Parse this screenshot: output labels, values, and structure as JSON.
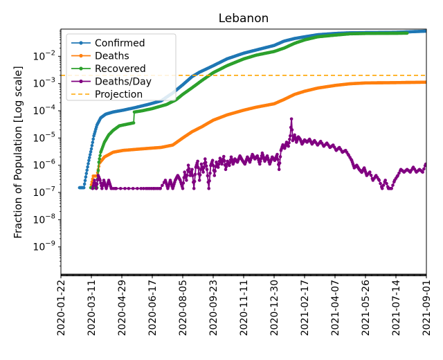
{
  "chart_data": {
    "type": "line",
    "title": "Lebanon",
    "ylabel": "Fraction of Population [Log scale]",
    "xlabel": "",
    "yscale": "log",
    "ylim": [
      1e-10,
      0.1
    ],
    "xlim": [
      "2020-01-22",
      "2021-09-01"
    ],
    "x_ticks": [
      "2020-01-22",
      "2020-03-11",
      "2020-04-29",
      "2020-06-17",
      "2020-08-05",
      "2020-09-23",
      "2020-11-11",
      "2020-12-30",
      "2021-02-17",
      "2021-04-07",
      "2021-05-26",
      "2021-07-14",
      "2021-09-01"
    ],
    "y_ticks": [
      {
        "value": 1e-09,
        "base": "10",
        "exp": "−9"
      },
      {
        "value": 1e-08,
        "base": "10",
        "exp": "−8"
      },
      {
        "value": 1e-07,
        "base": "10",
        "exp": "−7"
      },
      {
        "value": 1e-06,
        "base": "10",
        "exp": "−6"
      },
      {
        "value": 1e-05,
        "base": "10",
        "exp": "−5"
      },
      {
        "value": 0.0001,
        "base": "10",
        "exp": "−4"
      },
      {
        "value": 0.001,
        "base": "10",
        "exp": "−3"
      },
      {
        "value": 0.01,
        "base": "10",
        "exp": "−2"
      }
    ],
    "legend_position": "upper-left",
    "series": [
      {
        "name": "Confirmed",
        "color": "#1f77b4",
        "style": "line-marker",
        "points": [
          [
            "2020-02-21",
            1.5e-07
          ],
          [
            "2020-02-28",
            1.5e-07
          ],
          [
            "2020-03-03",
            5e-07
          ],
          [
            "2020-03-07",
            1.5e-06
          ],
          [
            "2020-03-11",
            4e-06
          ],
          [
            "2020-03-15",
            1.2e-05
          ],
          [
            "2020-03-20",
            3e-05
          ],
          [
            "2020-03-26",
            5.5e-05
          ],
          [
            "2020-04-03",
            7.5e-05
          ],
          [
            "2020-04-15",
            9e-05
          ],
          [
            "2020-05-01",
            0.000105
          ],
          [
            "2020-05-20",
            0.00013
          ],
          [
            "2020-06-10",
            0.00017
          ],
          [
            "2020-07-01",
            0.00023
          ],
          [
            "2020-07-20",
            0.00045
          ],
          [
            "2020-08-05",
            0.0009
          ],
          [
            "2020-08-20",
            0.0018
          ],
          [
            "2020-09-01",
            0.0026
          ],
          [
            "2020-09-23",
            0.0045
          ],
          [
            "2020-10-15",
            0.008
          ],
          [
            "2020-11-11",
            0.013
          ],
          [
            "2020-12-01",
            0.017
          ],
          [
            "2020-12-30",
            0.025
          ],
          [
            "2021-01-15",
            0.036
          ],
          [
            "2021-02-01",
            0.045
          ],
          [
            "2021-02-17",
            0.052
          ],
          [
            "2021-03-10",
            0.062
          ],
          [
            "2021-04-07",
            0.069
          ],
          [
            "2021-05-01",
            0.073
          ],
          [
            "2021-05-26",
            0.074
          ],
          [
            "2021-07-14",
            0.076
          ],
          [
            "2021-09-01",
            0.084
          ]
        ]
      },
      {
        "name": "Deaths",
        "color": "#ff7f0e",
        "style": "line-marker",
        "points": [
          [
            "2020-03-10",
            1.5e-07
          ],
          [
            "2020-03-14",
            4e-07
          ],
          [
            "2020-03-20",
            4e-07
          ],
          [
            "2020-03-24",
            1.2e-06
          ],
          [
            "2020-04-01",
            2e-06
          ],
          [
            "2020-04-15",
            3e-06
          ],
          [
            "2020-05-01",
            3.5e-06
          ],
          [
            "2020-06-01",
            4e-06
          ],
          [
            "2020-07-01",
            4.5e-06
          ],
          [
            "2020-07-20",
            5.5e-06
          ],
          [
            "2020-08-05",
            1e-05
          ],
          [
            "2020-08-20",
            1.7e-05
          ],
          [
            "2020-09-05",
            2.6e-05
          ],
          [
            "2020-09-23",
            4.5e-05
          ],
          [
            "2020-10-15",
            7e-05
          ],
          [
            "2020-11-11",
            0.000105
          ],
          [
            "2020-12-01",
            0.000135
          ],
          [
            "2020-12-30",
            0.00018
          ],
          [
            "2021-01-15",
            0.00026
          ],
          [
            "2021-02-01",
            0.0004
          ],
          [
            "2021-02-17",
            0.00052
          ],
          [
            "2021-03-10",
            0.00068
          ],
          [
            "2021-04-07",
            0.00085
          ],
          [
            "2021-05-01",
            0.00098
          ],
          [
            "2021-05-26",
            0.00105
          ],
          [
            "2021-07-14",
            0.00108
          ],
          [
            "2021-09-01",
            0.00112
          ]
        ]
      },
      {
        "name": "Recovered",
        "color": "#2ca02c",
        "style": "line-marker",
        "points": [
          [
            "2020-03-10",
            1.5e-07
          ],
          [
            "2020-03-20",
            1.5e-07
          ],
          [
            "2020-03-23",
            1.3e-06
          ],
          [
            "2020-03-26",
            3e-06
          ],
          [
            "2020-04-01",
            7e-06
          ],
          [
            "2020-04-08",
            1.3e-05
          ],
          [
            "2020-04-15",
            1.9e-05
          ],
          [
            "2020-04-25",
            2.8e-05
          ],
          [
            "2020-05-10",
            3.3e-05
          ],
          [
            "2020-05-18",
            3.6e-05
          ],
          [
            "2020-05-19",
            9e-05
          ],
          [
            "2020-06-01",
            0.0001
          ],
          [
            "2020-06-17",
            0.00012
          ],
          [
            "2020-07-10",
            0.00017
          ],
          [
            "2020-07-25",
            0.00025
          ],
          [
            "2020-08-05",
            0.0004
          ],
          [
            "2020-08-20",
            0.0007
          ],
          [
            "2020-09-05",
            0.0013
          ],
          [
            "2020-09-23",
            0.0025
          ],
          [
            "2020-10-15",
            0.0045
          ],
          [
            "2020-11-11",
            0.008
          ],
          [
            "2020-12-01",
            0.011
          ],
          [
            "2020-12-30",
            0.015
          ],
          [
            "2021-01-15",
            0.02
          ],
          [
            "2021-02-01",
            0.03
          ],
          [
            "2021-02-17",
            0.04
          ],
          [
            "2021-03-10",
            0.052
          ],
          [
            "2021-04-07",
            0.06
          ],
          [
            "2021-05-01",
            0.067
          ],
          [
            "2021-05-26",
            0.069
          ],
          [
            "2021-07-14",
            0.07
          ],
          [
            "2021-08-01",
            0.071
          ]
        ]
      },
      {
        "name": "Deaths/Day",
        "color": "#800080",
        "style": "line-marker",
        "points": [
          [
            "2020-03-13",
            1.4e-07
          ],
          [
            "2020-03-16",
            2.8e-07
          ],
          [
            "2020-03-19",
            1.4e-07
          ],
          [
            "2020-03-22",
            4.2e-07
          ],
          [
            "2020-03-25",
            2.8e-07
          ],
          [
            "2020-03-28",
            1.4e-07
          ],
          [
            "2020-03-31",
            2.8e-07
          ],
          [
            "2020-04-04",
            1.4e-07
          ],
          [
            "2020-04-08",
            2.8e-07
          ],
          [
            "2020-04-12",
            1.4e-07
          ],
          [
            "2020-04-20",
            1.4e-07
          ],
          [
            "2020-05-10",
            1.4e-07
          ],
          [
            "2020-05-30",
            1.4e-07
          ],
          [
            "2020-06-10",
            1.4e-07
          ],
          [
            "2020-06-20",
            1.4e-07
          ],
          [
            "2020-06-30",
            1.4e-07
          ],
          [
            "2020-07-08",
            2.8e-07
          ],
          [
            "2020-07-12",
            1.4e-07
          ],
          [
            "2020-07-16",
            2.8e-07
          ],
          [
            "2020-07-20",
            1.4e-07
          ],
          [
            "2020-07-24",
            2.8e-07
          ],
          [
            "2020-07-28",
            4.2e-07
          ],
          [
            "2020-08-01",
            2.8e-07
          ],
          [
            "2020-08-05",
            1.4e-07
          ],
          [
            "2020-08-08",
            5.6e-07
          ],
          [
            "2020-08-11",
            2.8e-07
          ],
          [
            "2020-08-14",
            1e-06
          ],
          [
            "2020-08-17",
            4.2e-07
          ],
          [
            "2020-08-20",
            7e-07
          ],
          [
            "2020-08-23",
            1.4e-07
          ],
          [
            "2020-08-26",
            8.4e-07
          ],
          [
            "2020-08-29",
            1.4e-06
          ],
          [
            "2020-09-01",
            2.8e-07
          ],
          [
            "2020-09-04",
            1.1e-06
          ],
          [
            "2020-09-07",
            5.6e-07
          ],
          [
            "2020-09-10",
            1.7e-06
          ],
          [
            "2020-09-13",
            7e-07
          ],
          [
            "2020-09-16",
            1.4e-07
          ],
          [
            "2020-09-19",
            9.8e-07
          ],
          [
            "2020-09-22",
            1.5e-06
          ],
          [
            "2020-09-25",
            4.2e-07
          ],
          [
            "2020-09-28",
            1.3e-06
          ],
          [
            "2020-10-01",
            8.4e-07
          ],
          [
            "2020-10-04",
            1.8e-06
          ],
          [
            "2020-10-07",
            1.1e-06
          ],
          [
            "2020-10-10",
            2.1e-06
          ],
          [
            "2020-10-13",
            7e-07
          ],
          [
            "2020-10-16",
            1.4e-06
          ],
          [
            "2020-10-19",
            9.8e-07
          ],
          [
            "2020-10-22",
            2e-06
          ],
          [
            "2020-10-25",
            1.1e-06
          ],
          [
            "2020-10-28",
            1.7e-06
          ],
          [
            "2020-11-01",
            1.3e-06
          ],
          [
            "2020-11-05",
            2.2e-06
          ],
          [
            "2020-11-09",
            1.5e-06
          ],
          [
            "2020-11-13",
            1.1e-06
          ],
          [
            "2020-11-17",
            2e-06
          ],
          [
            "2020-11-21",
            1.3e-06
          ],
          [
            "2020-11-25",
            2.5e-06
          ],
          [
            "2020-11-29",
            1.7e-06
          ],
          [
            "2020-12-03",
            2.2e-06
          ],
          [
            "2020-12-07",
            1.1e-06
          ],
          [
            "2020-12-11",
            2.8e-06
          ],
          [
            "2020-12-15",
            1.4e-06
          ],
          [
            "2020-12-19",
            2.2e-06
          ],
          [
            "2020-12-23",
            1.1e-06
          ],
          [
            "2020-12-27",
            2e-06
          ],
          [
            "2020-12-31",
            1.5e-06
          ],
          [
            "2021-01-04",
            2.5e-06
          ],
          [
            "2021-01-07",
            7e-07
          ],
          [
            "2021-01-10",
            3.5e-06
          ],
          [
            "2021-01-13",
            5.6e-06
          ],
          [
            "2021-01-16",
            4.2e-06
          ],
          [
            "2021-01-19",
            7e-06
          ],
          [
            "2021-01-22",
            5e-06
          ],
          [
            "2021-01-25",
            1.2e-05
          ],
          [
            "2021-01-27",
            5e-05
          ],
          [
            "2021-01-29",
            8e-06
          ],
          [
            "2021-02-01",
            1.3e-05
          ],
          [
            "2021-02-04",
            7e-06
          ],
          [
            "2021-02-07",
            1.1e-05
          ],
          [
            "2021-02-10",
            9e-06
          ],
          [
            "2021-02-13",
            6e-06
          ],
          [
            "2021-02-17",
            8.5e-06
          ],
          [
            "2021-02-21",
            7e-06
          ],
          [
            "2021-02-25",
            9e-06
          ],
          [
            "2021-03-01",
            6e-06
          ],
          [
            "2021-03-05",
            8e-06
          ],
          [
            "2021-03-10",
            5.5e-06
          ],
          [
            "2021-03-15",
            7.5e-06
          ],
          [
            "2021-03-20",
            5e-06
          ],
          [
            "2021-03-25",
            6.5e-06
          ],
          [
            "2021-03-30",
            4.5e-06
          ],
          [
            "2021-04-04",
            5.5e-06
          ],
          [
            "2021-04-09",
            3.5e-06
          ],
          [
            "2021-04-14",
            4.5e-06
          ],
          [
            "2021-04-19",
            3e-06
          ],
          [
            "2021-04-24",
            3.5e-06
          ],
          [
            "2021-04-29",
            2.3e-06
          ],
          [
            "2021-05-04",
            1.5e-06
          ],
          [
            "2021-05-08",
            8e-07
          ],
          [
            "2021-05-12",
            1e-06
          ],
          [
            "2021-05-16",
            7e-07
          ],
          [
            "2021-05-20",
            5.5e-07
          ],
          [
            "2021-05-24",
            8e-07
          ],
          [
            "2021-05-28",
            4.2e-07
          ],
          [
            "2021-06-02",
            5.6e-07
          ],
          [
            "2021-06-07",
            2.8e-07
          ],
          [
            "2021-06-12",
            4.2e-07
          ],
          [
            "2021-06-17",
            2.8e-07
          ],
          [
            "2021-06-22",
            1.4e-07
          ],
          [
            "2021-06-27",
            2.8e-07
          ],
          [
            "2021-07-02",
            1.4e-07
          ],
          [
            "2021-07-07",
            1.4e-07
          ],
          [
            "2021-07-12",
            2.8e-07
          ],
          [
            "2021-07-17",
            4.2e-07
          ],
          [
            "2021-07-22",
            7e-07
          ],
          [
            "2021-07-27",
            5.6e-07
          ],
          [
            "2021-08-01",
            7e-07
          ],
          [
            "2021-08-06",
            5.6e-07
          ],
          [
            "2021-08-11",
            8.4e-07
          ],
          [
            "2021-08-16",
            5.6e-07
          ],
          [
            "2021-08-21",
            7e-07
          ],
          [
            "2021-08-26",
            5.6e-07
          ],
          [
            "2021-08-31",
            1.1e-06
          ]
        ]
      },
      {
        "name": "Projection",
        "color": "#ffa500",
        "style": "dashed",
        "hline": 0.002
      }
    ]
  }
}
